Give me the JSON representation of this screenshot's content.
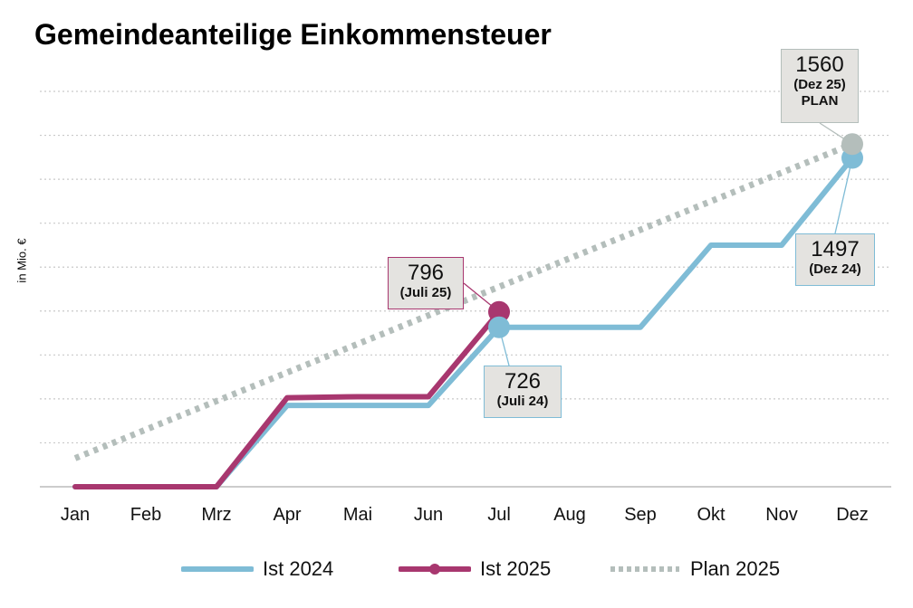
{
  "chart_data": {
    "type": "line",
    "title": "Gemeindeanteilige Einkommensteuer",
    "ylabel": "in Mio. €",
    "xlabel": "",
    "categories": [
      "Jan",
      "Feb",
      "Mrz",
      "Apr",
      "Mai",
      "Jun",
      "Jul",
      "Aug",
      "Sep",
      "Okt",
      "Nov",
      "Dez"
    ],
    "ylim": [
      0,
      1800
    ],
    "grid": true,
    "legend_position": "bottom",
    "series": [
      {
        "name": "Ist 2024",
        "color": "#7fbcd6",
        "style": "solid",
        "values": [
          0,
          0,
          0,
          370,
          370,
          370,
          726,
          726,
          726,
          1100,
          1100,
          1497
        ]
      },
      {
        "name": "Ist 2025",
        "color": "#a8376f",
        "style": "solid-marker",
        "values": [
          0,
          0,
          0,
          405,
          410,
          410,
          796,
          null,
          null,
          null,
          null,
          null
        ]
      },
      {
        "name": "Plan 2025",
        "color": "#b4bebb",
        "style": "dotted",
        "values": [
          130,
          260,
          390,
          520,
          650,
          780,
          910,
          1040,
          1170,
          1300,
          1430,
          1560
        ]
      }
    ],
    "annotations": [
      {
        "value": "796",
        "sub": "(Juli 25)",
        "sub2": "",
        "series": "Ist 2025",
        "month": "Jul",
        "color": "#a8376f"
      },
      {
        "value": "726",
        "sub": "(Juli 24)",
        "sub2": "",
        "series": "Ist 2024",
        "month": "Jul",
        "color": "#7fbcd6"
      },
      {
        "value": "1497",
        "sub": "(Dez 24)",
        "sub2": "",
        "series": "Ist 2024",
        "month": "Dez",
        "color": "#7fbcd6"
      },
      {
        "value": "1560",
        "sub": "(Dez 25)",
        "sub2": "PLAN",
        "series": "Plan 2025",
        "month": "Dez",
        "color": "#b4bebb"
      }
    ]
  }
}
